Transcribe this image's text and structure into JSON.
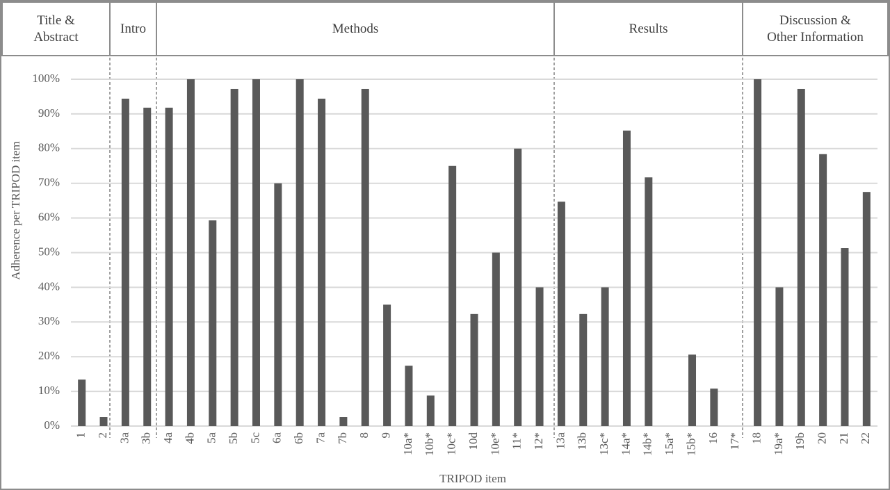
{
  "chart_data": {
    "type": "bar",
    "sections": [
      "Title &\nAbstract",
      "Intro",
      "Methods",
      "Results",
      "Discussion &\nOther Information"
    ],
    "x_label": "TRIPOD item",
    "y_label": "Adherence per TRIPOD item",
    "categories": [
      "1",
      "2",
      "3a",
      "3b",
      "4a",
      "4b",
      "5a",
      "5b",
      "5c",
      "6a",
      "6b",
      "7a",
      "7b",
      "8",
      "9",
      "10a*",
      "10b*",
      "10c*",
      "10d",
      "10e*",
      "11*",
      "12*",
      "13a",
      "13b",
      "13c*",
      "14a*",
      "14b*",
      "15a*",
      "15b*",
      "16",
      "17*",
      "18",
      "19a*",
      "19b",
      "20",
      "21",
      "22"
    ],
    "values": [
      13.4,
      2.6,
      94.4,
      91.8,
      91.8,
      100,
      59.3,
      97.2,
      100,
      70,
      100,
      94.4,
      2.6,
      97.2,
      35,
      17.4,
      8.8,
      75,
      32.3,
      50,
      80,
      40,
      64.7,
      32.3,
      40,
      85.2,
      71.7,
      0,
      20.6,
      10.8,
      0,
      100,
      40,
      97.2,
      78.4,
      51.3,
      67.5
    ],
    "color": "#595959",
    "ylim": [
      0,
      100
    ],
    "yticks": [
      {
        "value": 0,
        "label": "0%"
      },
      {
        "value": 10,
        "label": "10%"
      },
      {
        "value": 20,
        "label": "20%"
      },
      {
        "value": 30,
        "label": "30%"
      },
      {
        "value": 40,
        "label": "40%"
      },
      {
        "value": 50,
        "label": "50%"
      },
      {
        "value": 60,
        "label": "60%"
      },
      {
        "value": 70,
        "label": "70%"
      },
      {
        "value": 80,
        "label": "80%"
      },
      {
        "value": 90,
        "label": "90%"
      },
      {
        "value": 100,
        "label": "100%"
      }
    ],
    "grid": true
  }
}
